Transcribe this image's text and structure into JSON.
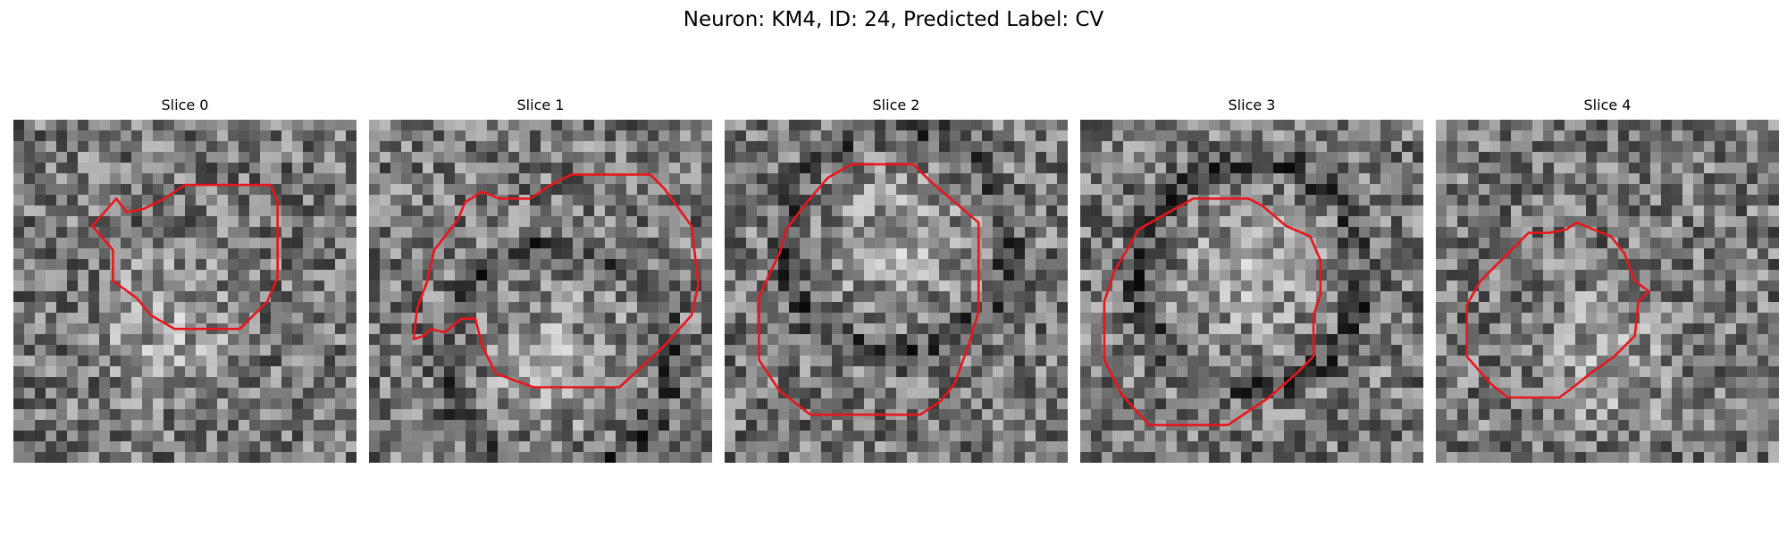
{
  "figure": {
    "title": "Neuron: KM4, ID: 24, Predicted Label: CV"
  },
  "contour_color": "#e8161b",
  "panels": [
    {
      "title": "Slice 0",
      "seed": 11,
      "bright_center": [
        0.45,
        0.6
      ],
      "dark_ring": false,
      "contour": [
        [
          0.5,
          0.19
        ],
        [
          0.75,
          0.19
        ],
        [
          0.77,
          0.24
        ],
        [
          0.77,
          0.46
        ],
        [
          0.74,
          0.53
        ],
        [
          0.66,
          0.61
        ],
        [
          0.47,
          0.61
        ],
        [
          0.4,
          0.57
        ],
        [
          0.36,
          0.52
        ],
        [
          0.29,
          0.47
        ],
        [
          0.29,
          0.38
        ],
        [
          0.23,
          0.31
        ],
        [
          0.3,
          0.23
        ],
        [
          0.33,
          0.27
        ],
        [
          0.38,
          0.26
        ],
        [
          0.44,
          0.23
        ]
      ]
    },
    {
      "title": "Slice 1",
      "seed": 23,
      "bright_center": [
        0.55,
        0.7
      ],
      "dark_ring": true,
      "contour": [
        [
          0.59,
          0.16
        ],
        [
          0.82,
          0.16
        ],
        [
          0.86,
          0.2
        ],
        [
          0.94,
          0.31
        ],
        [
          0.96,
          0.48
        ],
        [
          0.94,
          0.57
        ],
        [
          0.86,
          0.66
        ],
        [
          0.73,
          0.78
        ],
        [
          0.48,
          0.78
        ],
        [
          0.37,
          0.74
        ],
        [
          0.33,
          0.66
        ],
        [
          0.31,
          0.58
        ],
        [
          0.27,
          0.58
        ],
        [
          0.22,
          0.62
        ],
        [
          0.18,
          0.61
        ],
        [
          0.16,
          0.63
        ],
        [
          0.13,
          0.64
        ],
        [
          0.14,
          0.55
        ],
        [
          0.17,
          0.47
        ],
        [
          0.19,
          0.38
        ],
        [
          0.26,
          0.29
        ],
        [
          0.28,
          0.24
        ],
        [
          0.33,
          0.21
        ],
        [
          0.38,
          0.23
        ],
        [
          0.47,
          0.23
        ],
        [
          0.53,
          0.19
        ]
      ]
    },
    {
      "title": "Slice 2",
      "seed": 37,
      "bright_center": [
        0.5,
        0.35
      ],
      "dark_ring": true,
      "contour": [
        [
          0.37,
          0.13
        ],
        [
          0.55,
          0.13
        ],
        [
          0.6,
          0.18
        ],
        [
          0.74,
          0.3
        ],
        [
          0.74,
          0.56
        ],
        [
          0.71,
          0.66
        ],
        [
          0.67,
          0.77
        ],
        [
          0.63,
          0.82
        ],
        [
          0.57,
          0.86
        ],
        [
          0.25,
          0.86
        ],
        [
          0.16,
          0.79
        ],
        [
          0.1,
          0.7
        ],
        [
          0.1,
          0.52
        ],
        [
          0.13,
          0.45
        ],
        [
          0.16,
          0.39
        ],
        [
          0.18,
          0.32
        ],
        [
          0.24,
          0.24
        ],
        [
          0.3,
          0.17
        ]
      ]
    },
    {
      "title": "Slice 3",
      "seed": 41,
      "bright_center": [
        0.5,
        0.45
      ],
      "dark_ring": true,
      "contour": [
        [
          0.33,
          0.23
        ],
        [
          0.42,
          0.23
        ],
        [
          0.49,
          0.23
        ],
        [
          0.53,
          0.25
        ],
        [
          0.6,
          0.31
        ],
        [
          0.67,
          0.34
        ],
        [
          0.7,
          0.41
        ],
        [
          0.7,
          0.51
        ],
        [
          0.68,
          0.57
        ],
        [
          0.68,
          0.69
        ],
        [
          0.63,
          0.74
        ],
        [
          0.55,
          0.81
        ],
        [
          0.43,
          0.89
        ],
        [
          0.2,
          0.89
        ],
        [
          0.12,
          0.8
        ],
        [
          0.07,
          0.7
        ],
        [
          0.07,
          0.53
        ],
        [
          0.1,
          0.44
        ],
        [
          0.13,
          0.39
        ],
        [
          0.17,
          0.32
        ],
        [
          0.24,
          0.28
        ]
      ]
    },
    {
      "title": "Slice 4",
      "seed": 53,
      "bright_center": [
        0.5,
        0.7
      ],
      "dark_ring": false,
      "contour": [
        [
          0.38,
          0.32
        ],
        [
          0.41,
          0.3
        ],
        [
          0.46,
          0.32
        ],
        [
          0.51,
          0.34
        ],
        [
          0.55,
          0.39
        ],
        [
          0.58,
          0.47
        ],
        [
          0.62,
          0.5
        ],
        [
          0.59,
          0.53
        ],
        [
          0.58,
          0.63
        ],
        [
          0.52,
          0.69
        ],
        [
          0.45,
          0.74
        ],
        [
          0.4,
          0.78
        ],
        [
          0.36,
          0.81
        ],
        [
          0.21,
          0.81
        ],
        [
          0.16,
          0.77
        ],
        [
          0.09,
          0.69
        ],
        [
          0.09,
          0.54
        ],
        [
          0.13,
          0.47
        ],
        [
          0.21,
          0.39
        ],
        [
          0.27,
          0.33
        ],
        [
          0.33,
          0.33
        ]
      ]
    }
  ]
}
